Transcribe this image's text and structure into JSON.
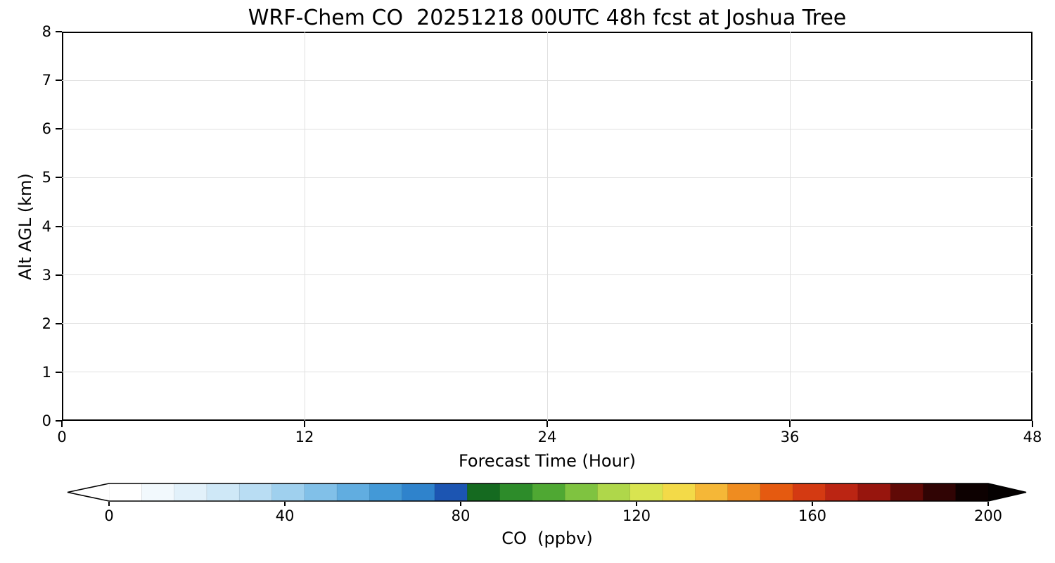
{
  "figure": {
    "background": "#ffffff",
    "plot_area_fill": "#ffffff",
    "axes_color": "#000000",
    "grid_color": "#e0e0e0"
  },
  "chart_data": {
    "type": "heatmap",
    "title": "WRF-Chem CO  20251218 00UTC 48h fcst at Joshua Tree",
    "xlabel": "Forecast Time (Hour)",
    "ylabel": "Alt AGL (km)",
    "xlim": [
      0,
      48
    ],
    "ylim": [
      0,
      8
    ],
    "x_ticks": [
      0,
      12,
      24,
      36,
      48
    ],
    "y_ticks": [
      0,
      1,
      2,
      3,
      4,
      5,
      6,
      7,
      8
    ],
    "grid": true,
    "values": [],
    "colorbar": {
      "label": "CO  (ppbv)",
      "ticks": [
        0,
        40,
        80,
        120,
        160,
        200
      ],
      "range": [
        0,
        200
      ],
      "extend": "both",
      "left_arrow_color": "#ffffff",
      "right_arrow_color": "#050101",
      "colors": [
        "#ffffff",
        "#f2f9fd",
        "#e2f1fa",
        "#cfe8f7",
        "#b9ddf3",
        "#9fd0ee",
        "#81c0e8",
        "#61ade0",
        "#4399d7",
        "#2f83cc",
        "#1c55b2",
        "#156a20",
        "#2d8c2a",
        "#4fa833",
        "#7fc340",
        "#afd74a",
        "#d9e450",
        "#f3da48",
        "#f5b737",
        "#ef8c20",
        "#e55a10",
        "#d43a12",
        "#bb2513",
        "#97150d",
        "#600a06",
        "#300404",
        "#0d0101"
      ]
    }
  }
}
